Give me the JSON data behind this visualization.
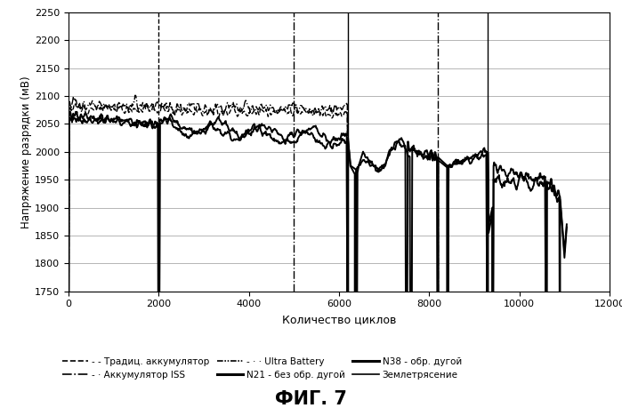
{
  "title": "ФИГ. 7",
  "xlabel": "Количество циклов",
  "ylabel": "Напряжение разрядки (мВ)",
  "xlim": [
    0,
    12000
  ],
  "ylim": [
    1750,
    2250
  ],
  "yticks": [
    1750,
    1800,
    1850,
    1900,
    1950,
    2000,
    2050,
    2100,
    2150,
    2200,
    2250
  ],
  "xticks": [
    0,
    2000,
    4000,
    6000,
    8000,
    10000,
    12000
  ],
  "vline_dashed_x": 2000,
  "vline_dashdot_x": 5000,
  "vline_solid_x": 6200,
  "vline_dashdot2_x": 8200,
  "vline_solid2_x": 9300,
  "background_color": "white",
  "grid_color": "#aaaaaa",
  "legend_row1": [
    "- - Традиц. аккумулятор",
    "- · Аккумулятор ISS",
    "- · · Ultra Battery"
  ],
  "legend_row2": [
    "N21 - без обр. дугой",
    "N38 - обр. дугой",
    "Землетрясение"
  ]
}
